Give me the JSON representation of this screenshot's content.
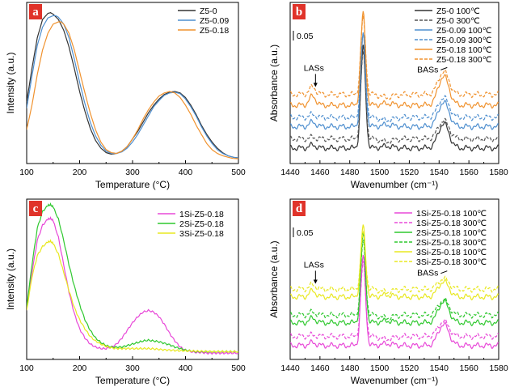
{
  "chart_data": [
    {
      "panel": "a",
      "type": "line",
      "xlabel": "Temperature (°C)",
      "ylabel": "Intensity (a.u.)",
      "xlim": [
        100,
        500
      ],
      "xticks": [
        100,
        200,
        300,
        400,
        500
      ],
      "ylim": [
        0,
        1.0
      ],
      "legend_position": "top-right",
      "series": [
        {
          "name": "Z5-0",
          "color": "#333333",
          "dash": false,
          "x": [
            100,
            110,
            120,
            130,
            140,
            145,
            150,
            160,
            170,
            180,
            190,
            200,
            210,
            220,
            230,
            240,
            250,
            260,
            270,
            280,
            290,
            300,
            310,
            320,
            330,
            340,
            350,
            360,
            370,
            380,
            390,
            400,
            410,
            420,
            430,
            440,
            450,
            460,
            470,
            480,
            490,
            500
          ],
          "y": [
            0.38,
            0.6,
            0.8,
            0.92,
            0.96,
            0.965,
            0.955,
            0.92,
            0.85,
            0.74,
            0.6,
            0.45,
            0.32,
            0.21,
            0.13,
            0.08,
            0.05,
            0.04,
            0.045,
            0.06,
            0.09,
            0.14,
            0.19,
            0.25,
            0.31,
            0.36,
            0.4,
            0.43,
            0.445,
            0.45,
            0.44,
            0.41,
            0.36,
            0.3,
            0.23,
            0.17,
            0.12,
            0.08,
            0.05,
            0.03,
            0.02,
            0.015
          ]
        },
        {
          "name": "Z5-0.09",
          "color": "#4f8fcf",
          "dash": false,
          "x": [
            100,
            110,
            120,
            130,
            140,
            150,
            155,
            160,
            170,
            180,
            190,
            200,
            210,
            220,
            230,
            240,
            250,
            260,
            270,
            280,
            290,
            300,
            310,
            320,
            330,
            340,
            350,
            360,
            370,
            380,
            390,
            400,
            410,
            420,
            430,
            440,
            450,
            460,
            470,
            480,
            490,
            500
          ],
          "y": [
            0.34,
            0.55,
            0.75,
            0.87,
            0.93,
            0.945,
            0.945,
            0.935,
            0.89,
            0.8,
            0.66,
            0.51,
            0.37,
            0.25,
            0.16,
            0.1,
            0.06,
            0.045,
            0.045,
            0.055,
            0.08,
            0.12,
            0.17,
            0.23,
            0.29,
            0.35,
            0.39,
            0.425,
            0.44,
            0.445,
            0.435,
            0.4,
            0.35,
            0.29,
            0.22,
            0.16,
            0.11,
            0.07,
            0.045,
            0.03,
            0.02,
            0.015
          ]
        },
        {
          "name": "Z5-0.18",
          "color": "#f0922e",
          "dash": false,
          "x": [
            100,
            110,
            120,
            130,
            140,
            150,
            160,
            165,
            170,
            180,
            190,
            200,
            210,
            220,
            230,
            240,
            250,
            260,
            270,
            280,
            290,
            300,
            310,
            320,
            330,
            340,
            350,
            360,
            370,
            380,
            390,
            400,
            410,
            420,
            430,
            440,
            450,
            460,
            470,
            480,
            490,
            500
          ],
          "y": [
            0.2,
            0.36,
            0.56,
            0.72,
            0.83,
            0.89,
            0.905,
            0.905,
            0.89,
            0.83,
            0.72,
            0.58,
            0.44,
            0.31,
            0.2,
            0.12,
            0.07,
            0.05,
            0.045,
            0.06,
            0.09,
            0.14,
            0.2,
            0.27,
            0.33,
            0.38,
            0.42,
            0.44,
            0.45,
            0.44,
            0.41,
            0.36,
            0.3,
            0.23,
            0.17,
            0.11,
            0.07,
            0.045,
            0.03,
            0.02,
            0.012,
            0.01
          ]
        }
      ]
    },
    {
      "panel": "b",
      "type": "line",
      "xlabel": "Wavenumber (cm⁻¹)",
      "ylabel": "Absorbance (a.u.)",
      "xlim": [
        1440,
        1580
      ],
      "xticks": [
        1440,
        1460,
        1480,
        1500,
        1520,
        1540,
        1560,
        1580
      ],
      "ylim": [
        0,
        1.0
      ],
      "scale_bar_label": "0.05",
      "annotations": [
        "LASs",
        "BASs"
      ],
      "legend_position": "top-right",
      "series": [
        {
          "name": "Z5-0 100℃",
          "color": "#333333",
          "dash": false,
          "baseline": 0.08,
          "main": 0.66,
          "side": 0.16,
          "las": 0.02
        },
        {
          "name": "Z5-0 300℃",
          "color": "#555555",
          "dash": true,
          "baseline": 0.14,
          "main": 0.56,
          "side": 0.12,
          "las": 0.01
        },
        {
          "name": "Z5-0.09 100℃",
          "color": "#4f8fcf",
          "dash": false,
          "baseline": 0.22,
          "main": 0.6,
          "side": 0.16,
          "las": 0.03
        },
        {
          "name": "Z5-0.09 300℃",
          "color": "#4f8fcf",
          "dash": true,
          "baseline": 0.28,
          "main": 0.54,
          "side": 0.13,
          "las": 0.02
        },
        {
          "name": "Z5-0.18 100℃",
          "color": "#f0922e",
          "dash": false,
          "baseline": 0.36,
          "main": 0.6,
          "side": 0.19,
          "las": 0.06
        },
        {
          "name": "Z5-0.18 300℃",
          "color": "#f0922e",
          "dash": true,
          "baseline": 0.43,
          "main": 0.5,
          "side": 0.15,
          "las": 0.05
        }
      ]
    },
    {
      "panel": "c",
      "type": "line",
      "xlabel": "Temperature (°C)",
      "ylabel": "Intensity (a.u.)",
      "xlim": [
        100,
        500
      ],
      "xticks": [
        100,
        200,
        300,
        400,
        500
      ],
      "ylim": [
        0,
        1.0
      ],
      "legend_position": "top-right",
      "series": [
        {
          "name": "1Si-Z5-0.18",
          "color": "#e848d8",
          "dash": false,
          "x": [
            100,
            110,
            120,
            130,
            140,
            145,
            150,
            160,
            170,
            180,
            190,
            200,
            210,
            220,
            230,
            240,
            250,
            260,
            270,
            280,
            290,
            300,
            310,
            320,
            330,
            340,
            350,
            360,
            370,
            380,
            390,
            400,
            410,
            420,
            430,
            440,
            450,
            460,
            470,
            480,
            490,
            500
          ],
          "y": [
            0.3,
            0.55,
            0.76,
            0.86,
            0.9,
            0.905,
            0.89,
            0.78,
            0.6,
            0.42,
            0.28,
            0.18,
            0.12,
            0.08,
            0.06,
            0.05,
            0.05,
            0.06,
            0.08,
            0.12,
            0.17,
            0.22,
            0.26,
            0.29,
            0.3,
            0.29,
            0.26,
            0.21,
            0.15,
            0.1,
            0.06,
            0.04,
            0.03,
            0.025,
            0.025,
            0.02,
            0.02,
            0.02,
            0.02,
            0.02,
            0.02,
            0.02
          ]
        },
        {
          "name": "2Si-Z5-0.18",
          "color": "#2fc82f",
          "dash": false,
          "x": [
            100,
            110,
            120,
            130,
            140,
            145,
            150,
            160,
            170,
            180,
            190,
            200,
            210,
            220,
            230,
            240,
            250,
            260,
            270,
            280,
            290,
            300,
            310,
            320,
            330,
            340,
            350,
            360,
            370,
            380,
            390,
            400,
            410,
            420,
            430,
            440,
            450,
            460,
            470,
            480,
            490,
            500
          ],
          "y": [
            0.32,
            0.6,
            0.84,
            0.95,
            0.99,
            0.995,
            0.98,
            0.9,
            0.76,
            0.6,
            0.46,
            0.34,
            0.24,
            0.17,
            0.12,
            0.09,
            0.07,
            0.06,
            0.06,
            0.06,
            0.07,
            0.08,
            0.09,
            0.1,
            0.105,
            0.1,
            0.095,
            0.085,
            0.075,
            0.06,
            0.05,
            0.04,
            0.035,
            0.03,
            0.03,
            0.03,
            0.03,
            0.03,
            0.03,
            0.03,
            0.03,
            0.03
          ]
        },
        {
          "name": "3Si-Z5-0.18",
          "color": "#e8e820",
          "dash": false,
          "x": [
            100,
            110,
            120,
            130,
            140,
            145,
            150,
            160,
            170,
            180,
            190,
            200,
            210,
            220,
            230,
            240,
            250,
            260,
            270,
            280,
            290,
            300,
            310,
            320,
            330,
            340,
            350,
            360,
            370,
            380,
            390,
            400,
            410,
            420,
            430,
            440,
            450,
            460,
            470,
            480,
            490,
            500
          ],
          "y": [
            0.3,
            0.52,
            0.66,
            0.72,
            0.75,
            0.755,
            0.74,
            0.67,
            0.55,
            0.43,
            0.32,
            0.24,
            0.18,
            0.13,
            0.1,
            0.08,
            0.065,
            0.055,
            0.05,
            0.05,
            0.05,
            0.05,
            0.05,
            0.05,
            0.05,
            0.048,
            0.045,
            0.042,
            0.04,
            0.038,
            0.036,
            0.035,
            0.034,
            0.033,
            0.032,
            0.032,
            0.031,
            0.031,
            0.031,
            0.03,
            0.03,
            0.03
          ]
        }
      ]
    },
    {
      "panel": "d",
      "type": "line",
      "xlabel": "Wavenumber (cm⁻¹)",
      "ylabel": "Absorbance (a.u.)",
      "xlim": [
        1440,
        1580
      ],
      "xticks": [
        1440,
        1460,
        1480,
        1500,
        1520,
        1540,
        1560,
        1580
      ],
      "ylim": [
        0,
        1.0
      ],
      "scale_bar_label": "0.05",
      "annotations": [
        "LASs",
        "BASs"
      ],
      "legend_position": "top-right",
      "series": [
        {
          "name": "1Si-Z5-0.18 100℃",
          "color": "#e848d8",
          "dash": false,
          "baseline": 0.07,
          "main": 0.58,
          "side": 0.14,
          "las": 0.02
        },
        {
          "name": "1Si-Z5-0.18 300℃",
          "color": "#e848d8",
          "dash": true,
          "baseline": 0.13,
          "main": 0.48,
          "side": 0.1,
          "las": 0.01
        },
        {
          "name": "2Si-Z5-0.18 100℃",
          "color": "#2fc82f",
          "dash": false,
          "baseline": 0.22,
          "main": 0.58,
          "side": 0.14,
          "las": 0.03
        },
        {
          "name": "2Si-Z5-0.18 300℃",
          "color": "#2fc82f",
          "dash": true,
          "baseline": 0.27,
          "main": 0.48,
          "side": 0.1,
          "las": 0.02
        },
        {
          "name": "3Si-Z5-0.18 100℃",
          "color": "#e8e820",
          "dash": false,
          "baseline": 0.39,
          "main": 0.46,
          "side": 0.1,
          "las": 0.04
        },
        {
          "name": "3Si-Z5-0.18 300℃",
          "color": "#e8e820",
          "dash": true,
          "baseline": 0.44,
          "main": 0.36,
          "side": 0.07,
          "las": 0.03
        }
      ]
    }
  ]
}
